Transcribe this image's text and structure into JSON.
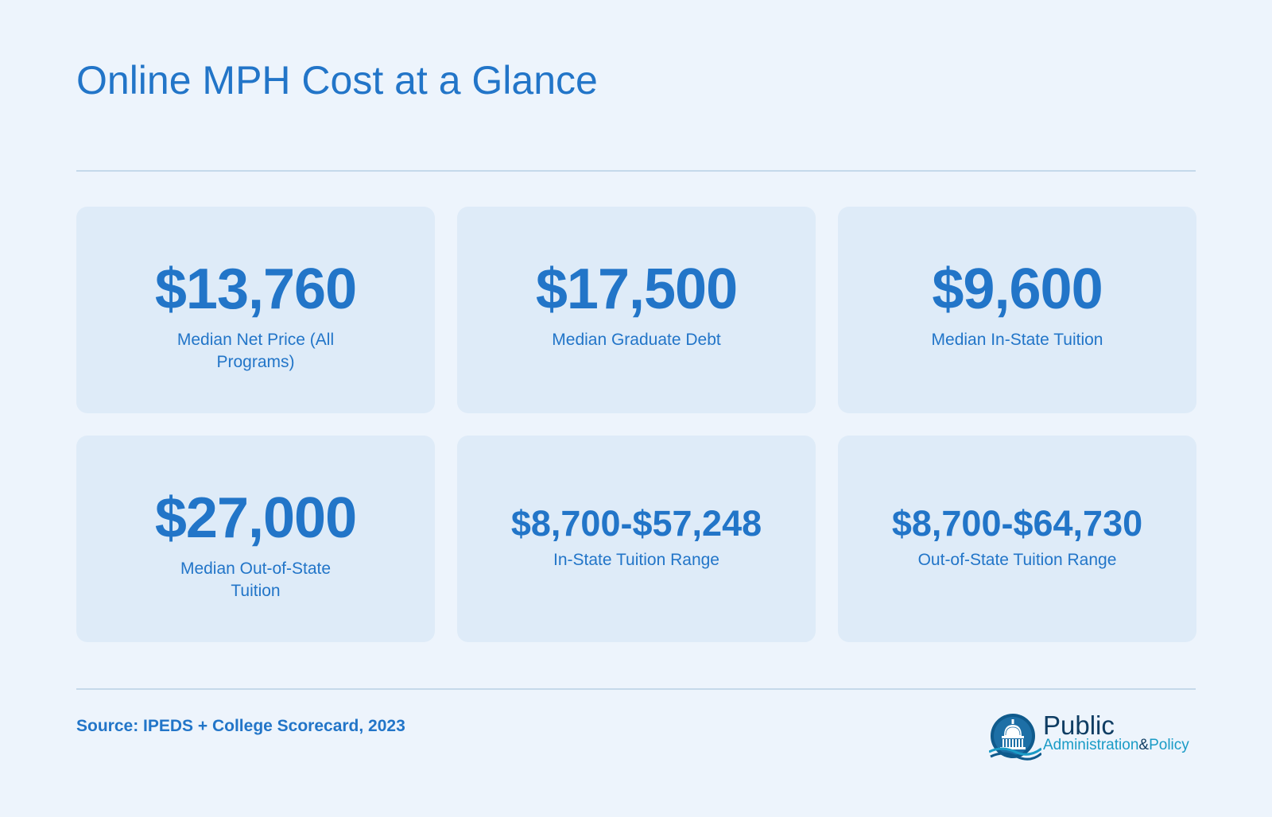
{
  "title": "Online MPH Cost at a Glance",
  "stats": [
    {
      "value": "$13,760",
      "label": "Median Net Price (All Programs)"
    },
    {
      "value": "$17,500",
      "label": "Median Graduate Debt"
    },
    {
      "value": "$9,600",
      "label": "Median In-State Tuition"
    },
    {
      "value": "$27,000",
      "label": "Median Out-of-State Tuition"
    },
    {
      "value": "$8,700-$57,248",
      "label": "In-State Tuition Range"
    },
    {
      "value": "$8,700-$64,730",
      "label": "Out-of-State Tuition Range"
    }
  ],
  "source": "Source: IPEDS + College Scorecard, 2023",
  "logo": {
    "line1": "Public",
    "administration": "Administration",
    "ampersand": "&",
    "policy": "Policy",
    "icon": "capitol-dome-icon"
  },
  "colors": {
    "background": "#edf4fc",
    "card": "#deebf8",
    "accent": "#2275c8",
    "rule": "#c5d9ea",
    "logo_dark": "#0f3d63",
    "logo_teal": "#1a9bc6"
  }
}
